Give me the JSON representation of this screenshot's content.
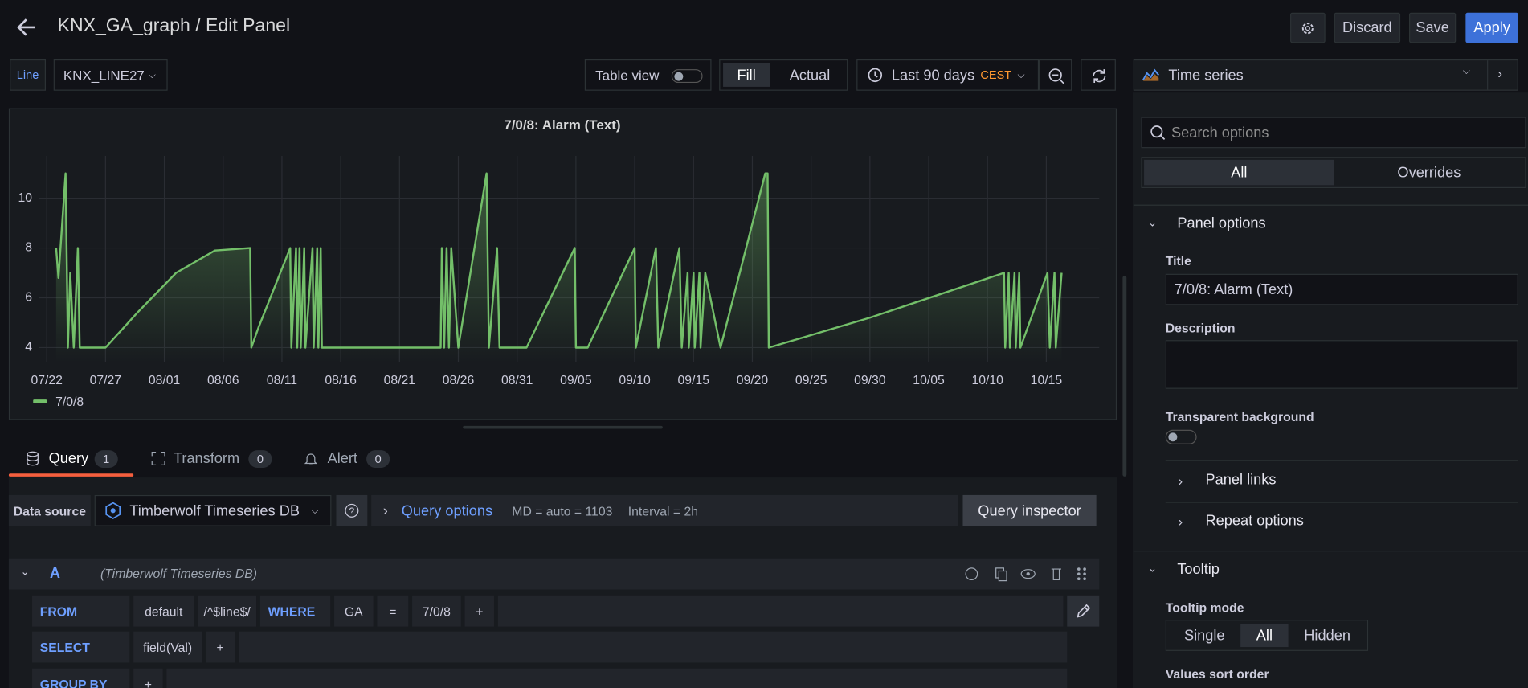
{
  "header": {
    "title": "KNX_GA_graph / Edit Panel",
    "discard": "Discard",
    "save": "Save",
    "apply": "Apply"
  },
  "toolbar": {
    "var_label": "Line",
    "var_value": "KNX_LINE27",
    "table_view": "Table view",
    "fill": "Fill",
    "actual": "Actual",
    "time_range": "Last 90 days",
    "timezone": "CEST",
    "visualization": "Time series"
  },
  "chart": {
    "type": "line",
    "title": "7/0/8: Alarm (Text)",
    "xlim": [
      -0.66,
      89.5
    ],
    "ylim": [
      3.4,
      11.7
    ],
    "yticks": [
      4,
      6,
      8,
      10
    ],
    "xticks": [
      {
        "value": 0,
        "label": "07/22"
      },
      {
        "value": 5,
        "label": "07/27"
      },
      {
        "value": 10,
        "label": "08/01"
      },
      {
        "value": 15,
        "label": "08/06"
      },
      {
        "value": 20,
        "label": "08/11"
      },
      {
        "value": 25,
        "label": "08/16"
      },
      {
        "value": 30,
        "label": "08/21"
      },
      {
        "value": 35,
        "label": "08/26"
      },
      {
        "value": 40,
        "label": "08/31"
      },
      {
        "value": 45,
        "label": "09/05"
      },
      {
        "value": 50,
        "label": "09/10"
      },
      {
        "value": 55,
        "label": "09/15"
      },
      {
        "value": 60,
        "label": "09/20"
      },
      {
        "value": 65,
        "label": "09/25"
      },
      {
        "value": 70,
        "label": "09/30"
      },
      {
        "value": 75,
        "label": "10/05"
      },
      {
        "value": 80,
        "label": "10/10"
      },
      {
        "value": 85,
        "label": "10/15"
      }
    ],
    "grid": true,
    "x": [
      0.8,
      1.0,
      1.6,
      1.8,
      2.0,
      2.3,
      2.65,
      2.8,
      5.0,
      7.7,
      11,
      14.3,
      17.3,
      17.4,
      18,
      20.7,
      20.8,
      21.2,
      21.3,
      21.5,
      21.6,
      21.9,
      22.0,
      22.6,
      22.7,
      23.0,
      23.1,
      23.3,
      23.4,
      33.5,
      33.6,
      33.8,
      34.0,
      34.2,
      34.4,
      35.0,
      37.4,
      37.6,
      38.3,
      38.5,
      40.8,
      44.9,
      45.0,
      46,
      48,
      50.0,
      50.1,
      51.8,
      52.0,
      53.8,
      54.0,
      54.5,
      54.6,
      55.0,
      55.1,
      55.5,
      55.6,
      56.0,
      57.3,
      61.1,
      61.3,
      61.4,
      70,
      81.4,
      81.5,
      81.8,
      81.9,
      82.3,
      82.4,
      82.7,
      82.8,
      85.1,
      85.3,
      85.7,
      85.8,
      86.3
    ],
    "series": [
      {
        "name": "7/0/8",
        "color": "#73bf69",
        "values": [
          8,
          6.8,
          11,
          4,
          7,
          4,
          8,
          4,
          4,
          5.4,
          7.0,
          7.9,
          8,
          4,
          4.8,
          8,
          4,
          8,
          4,
          8,
          4,
          8,
          4,
          8,
          4,
          8,
          4,
          8,
          4,
          4,
          8,
          4,
          8,
          4,
          8,
          4,
          11,
          4,
          8,
          4,
          4,
          8,
          4,
          4,
          6.0,
          8,
          4,
          8,
          4,
          8,
          4,
          7,
          4,
          7,
          4,
          7,
          4,
          7,
          4,
          11,
          11,
          4,
          5.2,
          7,
          4,
          7,
          4,
          7,
          4,
          7,
          4,
          7,
          4,
          7,
          4,
          7
        ]
      }
    ]
  },
  "tabs": [
    {
      "label": "Query",
      "count": 1
    },
    {
      "label": "Transform",
      "count": 0
    },
    {
      "label": "Alert",
      "count": 0
    }
  ],
  "query": {
    "datasource_label": "Data source",
    "datasource": "Timberwolf Timeseries DB",
    "query_options": "Query options",
    "md": "MD = auto = 1103",
    "interval": "Interval = 2h",
    "inspector": "Query inspector",
    "ref": "A",
    "ref_source": "(Timberwolf Timeseries DB)",
    "from": [
      "FROM",
      "default",
      "/^$line$/",
      "WHERE",
      "GA",
      "=",
      "7/0/8",
      "+"
    ],
    "select": [
      "SELECT",
      "field(Val)",
      "+"
    ],
    "group_by": [
      "GROUP BY",
      "+"
    ]
  },
  "options": {
    "search": "Search options",
    "tab_all": "All",
    "tab_overrides": "Overrides",
    "panel_options": "Panel options",
    "title_label": "Title",
    "title_value": "7/0/8: Alarm (Text)",
    "description": "Description",
    "transparent": "Transparent background",
    "panel_links": "Panel links",
    "repeat": "Repeat options",
    "tooltip": "Tooltip",
    "tooltip_mode": "Tooltip mode",
    "modes": [
      "Single",
      "All",
      "Hidden"
    ],
    "sort": "Values sort order"
  }
}
